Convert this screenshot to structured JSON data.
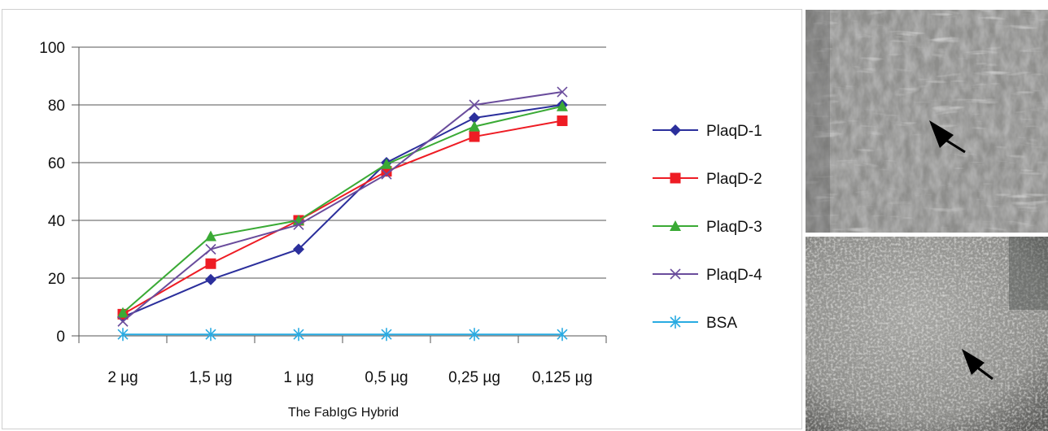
{
  "chart_data": {
    "type": "line",
    "xlabel": "The FabIgG Hybrid",
    "ylabel": "",
    "ylim": [
      0,
      100
    ],
    "yticks": [
      0,
      20,
      40,
      60,
      80,
      100
    ],
    "categories": [
      "2 µg",
      "1,5 µg",
      "1 µg",
      "0,5 µg",
      "0,25 µg",
      "0,125 µg"
    ],
    "grid": "horizontal",
    "legend_position": "right",
    "series": [
      {
        "name": "PlaqD-1",
        "color": "#2b2f9c",
        "marker": "diamond",
        "values": [
          6.5,
          19.5,
          30,
          60,
          75.5,
          80
        ]
      },
      {
        "name": "PlaqD-2",
        "color": "#ee1c24",
        "marker": "square",
        "values": [
          7.5,
          25,
          40,
          57,
          69,
          74.5
        ]
      },
      {
        "name": "PlaqD-3",
        "color": "#3aaa35",
        "marker": "triangle",
        "values": [
          8,
          34.5,
          40,
          59.5,
          72.5,
          79.5
        ]
      },
      {
        "name": "PlaqD-4",
        "color": "#6a4c9c",
        "marker": "x",
        "values": [
          5,
          30,
          38.5,
          56,
          80,
          84.5
        ]
      },
      {
        "name": "BSA",
        "color": "#29abe2",
        "marker": "asterisk",
        "values": [
          0.5,
          0.5,
          0.5,
          0.5,
          0.5,
          0.5
        ]
      }
    ]
  },
  "images": [
    {
      "name": "microscopy-top",
      "arrow": "black arrow"
    },
    {
      "name": "microscopy-bottom",
      "arrow": "black arrow"
    }
  ]
}
